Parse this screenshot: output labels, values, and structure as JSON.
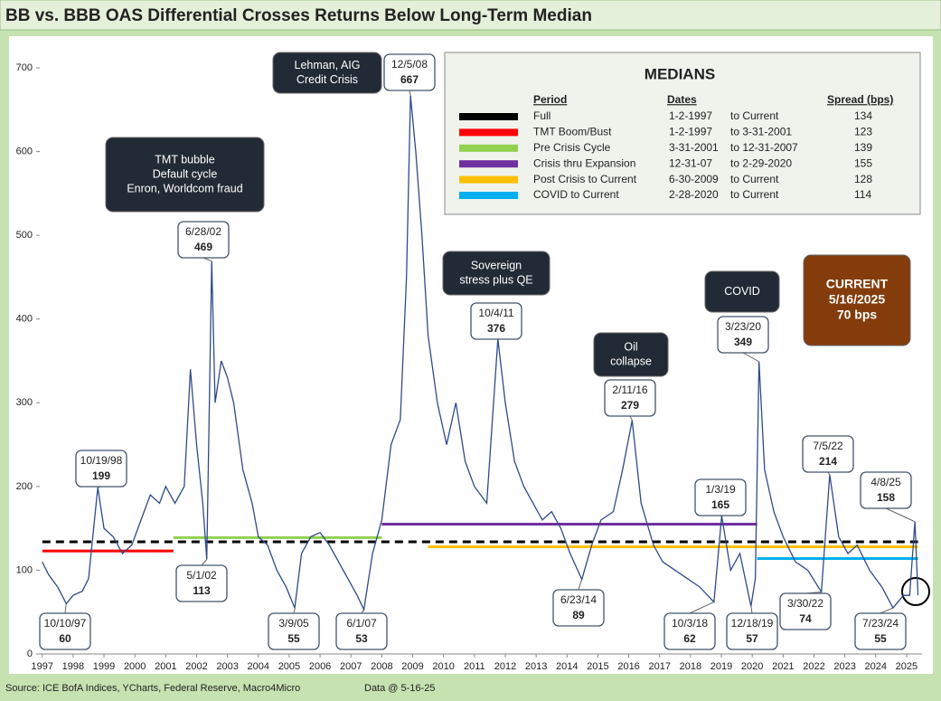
{
  "chart_data": {
    "type": "line",
    "title": "BB vs. BBB OAS Differential Crosses Returns Below Long-Term Median",
    "source": "Source: ICE BofA Indices, YCharts, Federal Reserve, Macro4Micro",
    "data_note": "Data @ 5-16-25",
    "xlim": [
      1996.92,
      2025.5
    ],
    "xticks": [
      1997,
      1998,
      1999,
      2000,
      2001,
      2002,
      2003,
      2004,
      2005,
      2006,
      2007,
      2008,
      2009,
      2010,
      2011,
      2012,
      2013,
      2014,
      2015,
      2016,
      2017,
      2018,
      2019,
      2020,
      2021,
      2022,
      2023,
      2024,
      2025
    ],
    "ylim": [
      0,
      700
    ],
    "yticks": [
      0,
      100,
      200,
      300,
      400,
      500,
      600,
      700
    ],
    "x": [
      1997.0,
      1997.2,
      1997.5,
      1997.78,
      1998.0,
      1998.3,
      1998.5,
      1998.8,
      1999.0,
      1999.3,
      1999.6,
      1999.9,
      2000.2,
      2000.5,
      2000.8,
      2001.0,
      2001.3,
      2001.6,
      2001.8,
      2002.0,
      2002.2,
      2002.33,
      2002.49,
      2002.6,
      2002.8,
      2003.0,
      2003.2,
      2003.5,
      2003.8,
      2004.0,
      2004.3,
      2004.6,
      2004.9,
      2005.18,
      2005.4,
      2005.7,
      2006.0,
      2006.3,
      2006.6,
      2006.9,
      2007.2,
      2007.42,
      2007.7,
      2008.0,
      2008.3,
      2008.6,
      2008.8,
      2008.93,
      2009.1,
      2009.3,
      2009.5,
      2009.8,
      2010.1,
      2010.4,
      2010.7,
      2011.0,
      2011.4,
      2011.76,
      2012.0,
      2012.3,
      2012.6,
      2012.9,
      2013.2,
      2013.5,
      2013.8,
      2014.1,
      2014.48,
      2014.8,
      2015.1,
      2015.5,
      2015.8,
      2016.11,
      2016.4,
      2016.8,
      2017.1,
      2017.5,
      2017.9,
      2018.3,
      2018.76,
      2019.01,
      2019.3,
      2019.6,
      2019.96,
      2020.1,
      2020.22,
      2020.4,
      2020.7,
      2021.0,
      2021.4,
      2021.8,
      2022.24,
      2022.51,
      2022.8,
      2023.1,
      2023.4,
      2023.8,
      2024.2,
      2024.56,
      2024.9,
      2025.1,
      2025.27,
      2025.37
    ],
    "series": [
      {
        "name": "BB vs. BBB OAS Differential",
        "color": "#2f4a8a",
        "values": [
          110,
          95,
          80,
          60,
          70,
          75,
          90,
          199,
          150,
          140,
          120,
          130,
          160,
          190,
          180,
          200,
          180,
          200,
          340,
          250,
          180,
          113,
          469,
          300,
          350,
          330,
          300,
          220,
          180,
          140,
          130,
          100,
          80,
          55,
          120,
          140,
          145,
          130,
          110,
          90,
          70,
          53,
          120,
          160,
          250,
          280,
          450,
          667,
          600,
          500,
          380,
          300,
          250,
          300,
          230,
          200,
          180,
          376,
          300,
          230,
          200,
          180,
          160,
          170,
          150,
          120,
          89,
          130,
          160,
          170,
          220,
          279,
          180,
          130,
          110,
          100,
          90,
          80,
          62,
          165,
          100,
          120,
          57,
          90,
          349,
          220,
          170,
          140,
          110,
          100,
          74,
          214,
          140,
          120,
          130,
          100,
          80,
          55,
          70,
          70,
          158,
          70
        ]
      }
    ],
    "annotations": [
      {
        "date": "10/10/97",
        "value": 60
      },
      {
        "date": "10/19/98",
        "value": 199
      },
      {
        "date": "6/28/02",
        "value": 469
      },
      {
        "date": "5/1/02",
        "value": 113
      },
      {
        "date": "3/9/05",
        "value": 55
      },
      {
        "date": "6/1/07",
        "value": 53
      },
      {
        "date": "12/5/08",
        "value": 667
      },
      {
        "date": "10/4/11",
        "value": 376
      },
      {
        "date": "6/23/14",
        "value": 89
      },
      {
        "date": "2/11/16",
        "value": 279
      },
      {
        "date": "10/3/18",
        "value": 62
      },
      {
        "date": "1/3/19",
        "value": 165
      },
      {
        "date": "12/18/19",
        "value": 57
      },
      {
        "date": "3/23/20",
        "value": 349
      },
      {
        "date": "3/30/22",
        "value": 74
      },
      {
        "date": "7/5/22",
        "value": 214
      },
      {
        "date": "7/23/24",
        "value": 55
      },
      {
        "date": "4/8/25",
        "value": 158
      }
    ],
    "notes": [
      [
        "TMT bubble",
        "Default cycle",
        "Enron, Worldcom fraud"
      ],
      [
        "Lehman, AIG",
        "Credit Crisis"
      ],
      [
        "Sovereign",
        "stress plus QE"
      ],
      [
        "Oil",
        "collapse"
      ],
      [
        "COVID"
      ],
      [
        "CURRENT",
        "5/16/2025",
        "70 bps"
      ]
    ],
    "medians": {
      "title": "MEDIANS",
      "headers": [
        "Period",
        "Dates",
        "Spread (bps)"
      ],
      "rows": [
        {
          "period": "Full",
          "start": "1-2-1997",
          "end": "to Current",
          "spread": 134,
          "color": "#000000"
        },
        {
          "period": "TMT Boom/Bust",
          "start": "1-2-1997",
          "end": "to 3-31-2001",
          "spread": 123,
          "color": "#ff0000"
        },
        {
          "period": "Pre Crisis Cycle",
          "start": "3-31-2001",
          "end": "to 12-31-2007",
          "spread": 139,
          "color": "#92d050"
        },
        {
          "period": "Crisis thru Expansion",
          "start": "12-31-07",
          "end": "to 2-29-2020",
          "spread": 155,
          "color": "#7030a0"
        },
        {
          "period": "Post Crisis to Current",
          "start": "6-30-2009",
          "end": "to Current",
          "spread": 128,
          "color": "#ffc000"
        },
        {
          "period": "COVID to Current",
          "start": "2-28-2020",
          "end": "to Current",
          "spread": 114,
          "color": "#00b0f0"
        }
      ]
    }
  }
}
